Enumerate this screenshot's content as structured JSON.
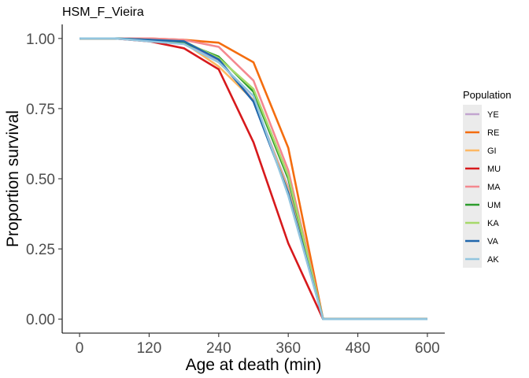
{
  "chart_data": {
    "type": "line",
    "title": "HSM_F_Vieira",
    "xlabel": "Age at death (min)",
    "ylabel": "Proportion survival",
    "xlim": [
      -30,
      630
    ],
    "ylim": [
      -0.05,
      1.05
    ],
    "x_ticks": [
      0,
      120,
      240,
      360,
      480,
      600
    ],
    "y_ticks": [
      0.0,
      0.25,
      0.5,
      0.75,
      1.0
    ],
    "y_tick_labels": [
      "0.00",
      "0.25",
      "0.50",
      "0.75",
      "1.00"
    ],
    "x": [
      0,
      60,
      120,
      180,
      240,
      300,
      360,
      420,
      480,
      540,
      600
    ],
    "grid": false,
    "legend_title": "Population",
    "legend_position": "right",
    "series": [
      {
        "name": "YE",
        "color": "#c2a5cf",
        "values": [
          1.0,
          1.0,
          0.99,
          0.985,
          0.92,
          0.78,
          0.47,
          0.0,
          0.0,
          0.0,
          0.0
        ]
      },
      {
        "name": "RE",
        "color": "#f46d0f",
        "values": [
          1.0,
          1.0,
          1.0,
          0.995,
          0.985,
          0.915,
          0.61,
          0.0,
          0.0,
          0.0,
          0.0
        ]
      },
      {
        "name": "GI",
        "color": "#fdb863",
        "values": [
          1.0,
          1.0,
          0.995,
          0.985,
          0.9,
          0.78,
          0.46,
          0.0,
          0.0,
          0.0,
          0.0
        ]
      },
      {
        "name": "MU",
        "color": "#d7191c",
        "values": [
          1.0,
          1.0,
          0.99,
          0.965,
          0.89,
          0.63,
          0.27,
          0.0,
          0.0,
          0.0,
          0.0
        ]
      },
      {
        "name": "MA",
        "color": "#f4888f",
        "values": [
          1.0,
          1.0,
          1.0,
          0.995,
          0.97,
          0.85,
          0.53,
          0.0,
          0.0,
          0.0,
          0.0
        ]
      },
      {
        "name": "UM",
        "color": "#2c9c2c",
        "values": [
          1.0,
          1.0,
          0.995,
          0.985,
          0.935,
          0.81,
          0.5,
          0.0,
          0.0,
          0.0,
          0.0
        ]
      },
      {
        "name": "KA",
        "color": "#a6d96a",
        "values": [
          1.0,
          1.0,
          0.995,
          0.99,
          0.93,
          0.82,
          0.51,
          0.0,
          0.0,
          0.0,
          0.0
        ]
      },
      {
        "name": "VA",
        "color": "#2166ac",
        "values": [
          1.0,
          1.0,
          0.995,
          0.99,
          0.925,
          0.775,
          0.45,
          0.0,
          0.0,
          0.0,
          0.0
        ]
      },
      {
        "name": "AK",
        "color": "#92c5de",
        "values": [
          1.0,
          1.0,
          0.99,
          0.98,
          0.915,
          0.795,
          0.44,
          0.0,
          0.0,
          0.0,
          0.0
        ]
      }
    ]
  }
}
